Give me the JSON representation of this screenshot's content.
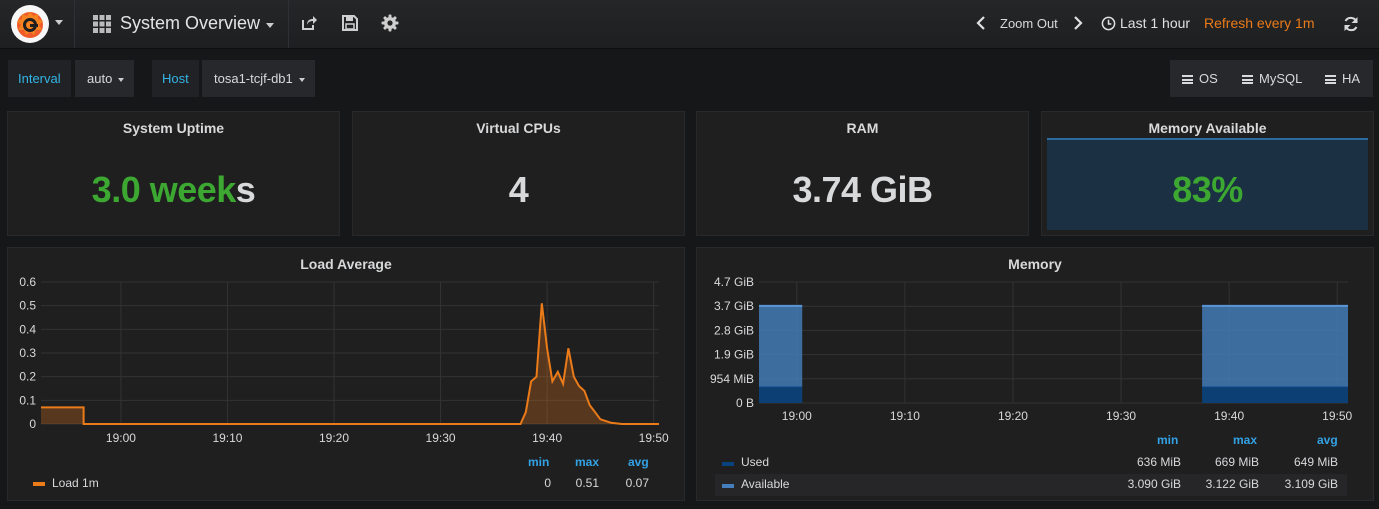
{
  "navbar": {
    "dashboard_title": "System Overview",
    "zoom_out_label": "Zoom Out",
    "time_range": "Last 1 hour",
    "refresh_label": "Refresh every 1m"
  },
  "variables": {
    "interval_label": "Interval",
    "interval_value": "auto",
    "host_label": "Host",
    "host_value": "tosa1-tcjf-db1"
  },
  "dashboard_links": [
    "OS",
    "MySQL",
    "HA"
  ],
  "stats": {
    "uptime": {
      "title": "System Uptime",
      "value": "3.0 week",
      "suffix": "s"
    },
    "vcpus": {
      "title": "Virtual CPUs",
      "value": "4"
    },
    "ram": {
      "title": "RAM",
      "value": "3.74 GiB"
    },
    "memory_available": {
      "title": "Memory Available",
      "value": "83%"
    }
  },
  "load_panel": {
    "title": "Load Average",
    "legend_headers": [
      "min",
      "max",
      "avg"
    ],
    "series": [
      {
        "name": "Load 1m",
        "color": "#eb7b18",
        "min": "0",
        "max": "0.51",
        "avg": "0.07"
      }
    ]
  },
  "memory_panel": {
    "title": "Memory",
    "legend_headers": [
      "min",
      "max",
      "avg"
    ],
    "series": [
      {
        "name": "Used",
        "color": "#0a437c",
        "min": "636 MiB",
        "max": "669 MiB",
        "avg": "649 MiB"
      },
      {
        "name": "Available",
        "color": "#447ebc",
        "min": "3.090 GiB",
        "max": "3.122 GiB",
        "avg": "3.109 GiB"
      }
    ]
  },
  "chart_data": [
    {
      "type": "area",
      "title": "Load Average",
      "x_ticks": [
        "19:00",
        "19:10",
        "19:20",
        "19:30",
        "19:40",
        "19:50"
      ],
      "y_ticks": [
        "0",
        "0.1",
        "0.2",
        "0.3",
        "0.4",
        "0.5",
        "0.6"
      ],
      "ylim": [
        0,
        0.6
      ],
      "xlim_minutes": [
        -7.5,
        50.5
      ],
      "series": [
        {
          "name": "Load 1m",
          "minutes": [
            -7.5,
            -3.5,
            -3.5,
            37.5,
            38,
            38.5,
            39,
            39.5,
            40,
            40.5,
            41,
            41.5,
            42,
            42.5,
            43,
            43.5,
            44,
            44.5,
            45,
            46,
            47,
            50.5
          ],
          "values": [
            0.07,
            0.07,
            0,
            0,
            0.05,
            0.18,
            0.2,
            0.51,
            0.32,
            0.18,
            0.22,
            0.17,
            0.32,
            0.2,
            0.16,
            0.14,
            0.08,
            0.05,
            0.02,
            0.005,
            0,
            0
          ]
        }
      ],
      "grid": true
    },
    {
      "type": "area",
      "title": "Memory",
      "x_ticks": [
        "19:00",
        "19:10",
        "19:20",
        "19:30",
        "19:40",
        "19:50"
      ],
      "y_ticks": [
        "0 B",
        "954 MiB",
        "1.9 GiB",
        "2.8 GiB",
        "3.7 GiB",
        "4.7 GiB"
      ],
      "ylim_gib": [
        0,
        4.66
      ],
      "xlim_minutes": [
        -3.5,
        51
      ],
      "stacked": true,
      "series": [
        {
          "name": "Used",
          "segments": [
            [
              -3.5,
              0.5
            ],
            [
              37.5,
              51
            ]
          ],
          "value_gib": 0.63
        },
        {
          "name": "Available",
          "segments": [
            [
              -3.5,
              0.5
            ],
            [
              37.5,
              51
            ]
          ],
          "value_gib": 3.11
        }
      ],
      "grid": true
    }
  ]
}
